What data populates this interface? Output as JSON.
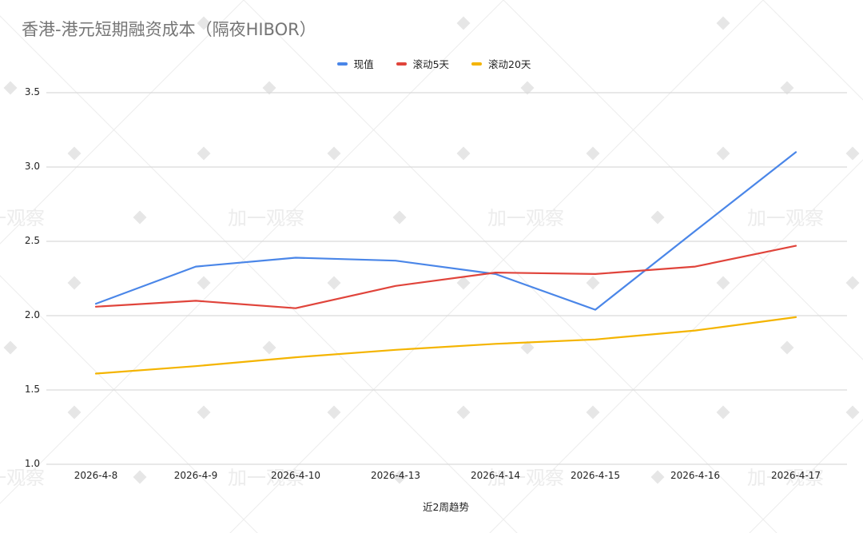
{
  "title": "香港-港元短期融资成本（隔夜HIBOR）",
  "legend": [
    {
      "label": "现值",
      "color": "#4a86e8"
    },
    {
      "label": "滚动5天",
      "color": "#e0443b"
    },
    {
      "label": "滚动20天",
      "color": "#f4b400"
    }
  ],
  "watermark": "加一观察",
  "chart_data": {
    "type": "line",
    "title": "香港-港元短期融资成本（隔夜HIBOR）",
    "xlabel": "近2周趋势",
    "ylabel": "",
    "ylim": [
      1.0,
      3.5
    ],
    "yticks": [
      "1.0",
      "1.5",
      "2.0",
      "2.5",
      "3.0",
      "3.5"
    ],
    "grid": true,
    "legend_position": "top",
    "categories": [
      "2026-4-8",
      "2026-4-9",
      "2026-4-10",
      "2026-4-13",
      "2026-4-14",
      "2026-4-15",
      "2026-4-16",
      "2026-4-17"
    ],
    "series": [
      {
        "name": "现值",
        "color": "#4a86e8",
        "values": [
          2.08,
          2.33,
          2.39,
          2.37,
          2.28,
          2.04,
          2.57,
          3.1
        ]
      },
      {
        "name": "滚动5天",
        "color": "#e0443b",
        "values": [
          2.06,
          2.1,
          2.05,
          2.2,
          2.29,
          2.28,
          2.33,
          2.47
        ]
      },
      {
        "name": "滚动20天",
        "color": "#f4b400",
        "values": [
          1.61,
          1.66,
          1.72,
          1.77,
          1.81,
          1.84,
          1.9,
          1.99
        ]
      }
    ]
  }
}
